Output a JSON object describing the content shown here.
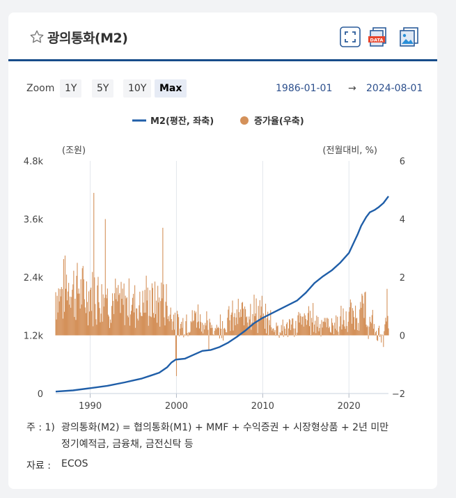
{
  "header": {
    "title": "광의통화(M2)",
    "icons": [
      "star-icon",
      "fullscreen-icon",
      "data-download-icon",
      "image-download-icon"
    ],
    "data_badge": "DATA"
  },
  "zoom": {
    "label": "Zoom",
    "buttons": [
      "1Y",
      "5Y",
      "10Y",
      "Max"
    ],
    "active": "Max",
    "range_from": "1986-01-01",
    "range_arrow": "→",
    "range_to": "2024-08-01"
  },
  "chart_data": {
    "type": "bar+line",
    "legend": {
      "position": "top-center",
      "series": [
        "M2(평잔, 좌축)",
        "증가율(우축)"
      ]
    },
    "left_axis": {
      "unit_label": "(조원)",
      "ticks": [
        "0",
        "1.2k",
        "2.4k",
        "3.6k",
        "4.8k"
      ],
      "range": [
        0,
        4800
      ]
    },
    "right_axis": {
      "unit_label": "(전월대비, %)",
      "ticks": [
        "−2",
        "0",
        "2",
        "4",
        "6"
      ],
      "range": [
        -2,
        6
      ]
    },
    "x_axis": {
      "ticks": [
        "1990",
        "2000",
        "2010",
        "2020"
      ],
      "range": [
        "1986-01",
        "2024-08"
      ]
    },
    "colors": {
      "line": "#1f5ea8",
      "bar": "#d4915a"
    },
    "series": [
      {
        "name": "M2(평잔, 좌축)",
        "axis": "left",
        "unit": "조원",
        "points": [
          [
            "1986-01",
            40
          ],
          [
            "1988-01",
            65
          ],
          [
            "1990-01",
            110
          ],
          [
            "1992-01",
            160
          ],
          [
            "1994-01",
            230
          ],
          [
            "1995-01",
            270
          ],
          [
            "1996-01",
            310
          ],
          [
            "1997-01",
            370
          ],
          [
            "1998-01",
            430
          ],
          [
            "1998-12",
            540
          ],
          [
            "1999-06",
            640
          ],
          [
            "1999-12",
            700
          ],
          [
            "2001-01",
            720
          ],
          [
            "2002-01",
            800
          ],
          [
            "2003-01",
            880
          ],
          [
            "2004-01",
            900
          ],
          [
            "2005-01",
            960
          ],
          [
            "2006-01",
            1050
          ],
          [
            "2007-01",
            1170
          ],
          [
            "2008-01",
            1300
          ],
          [
            "2009-01",
            1450
          ],
          [
            "2010-01",
            1560
          ],
          [
            "2011-01",
            1650
          ],
          [
            "2012-01",
            1740
          ],
          [
            "2013-01",
            1830
          ],
          [
            "2014-01",
            1920
          ],
          [
            "2015-01",
            2080
          ],
          [
            "2016-01",
            2280
          ],
          [
            "2017-01",
            2420
          ],
          [
            "2018-01",
            2540
          ],
          [
            "2019-01",
            2700
          ],
          [
            "2020-01",
            2900
          ],
          [
            "2021-01",
            3280
          ],
          [
            "2021-06",
            3460
          ],
          [
            "2022-01",
            3640
          ],
          [
            "2022-06",
            3740
          ],
          [
            "2023-01",
            3790
          ],
          [
            "2023-06",
            3840
          ],
          [
            "2024-01",
            3930
          ],
          [
            "2024-08",
            4070
          ]
        ]
      },
      {
        "name": "증가율(우축)",
        "axis": "right",
        "unit": "%",
        "monthly_estimate": [
          [
            1986,
            1.6
          ],
          [
            1987,
            1.9
          ],
          [
            1988,
            1.7
          ],
          [
            1989,
            1.5
          ],
          [
            1990,
            1.6
          ],
          [
            1991,
            1.5
          ],
          [
            1992,
            1.3
          ],
          [
            1993,
            1.2
          ],
          [
            1994,
            1.3
          ],
          [
            1995,
            1.2
          ],
          [
            1996,
            1.3
          ],
          [
            1997,
            1.2
          ],
          [
            1998,
            1.3
          ],
          [
            1999,
            0.9
          ],
          [
            2000,
            0.5
          ],
          [
            2001,
            0.6
          ],
          [
            2002,
            0.8
          ],
          [
            2003,
            0.5
          ],
          [
            2004,
            0.4
          ],
          [
            2005,
            0.5
          ],
          [
            2006,
            0.7
          ],
          [
            2007,
            0.8
          ],
          [
            2008,
            1.1
          ],
          [
            2009,
            0.9
          ],
          [
            2010,
            0.6
          ],
          [
            2011,
            0.4
          ],
          [
            2012,
            0.4
          ],
          [
            2013,
            0.4
          ],
          [
            2014,
            0.6
          ],
          [
            2015,
            0.7
          ],
          [
            2016,
            0.6
          ],
          [
            2017,
            0.5
          ],
          [
            2018,
            0.5
          ],
          [
            2019,
            0.6
          ],
          [
            2020,
            0.8
          ],
          [
            2021,
            1.0
          ],
          [
            2022,
            0.5
          ],
          [
            2023,
            0.2
          ],
          [
            2024,
            0.5
          ]
        ],
        "extremes": [
          [
            "1990-06",
            4.9
          ],
          [
            "1991-10",
            4.0
          ],
          [
            "1998-06",
            3.7
          ],
          [
            "1999-12",
            -0.8
          ],
          [
            "2000-01",
            -1.4
          ],
          [
            "2003-10",
            -0.5
          ],
          [
            "2024-01",
            -0.4
          ],
          [
            "2024-06",
            1.6
          ]
        ]
      }
    ]
  },
  "footnote": {
    "note_label": "주 : 1)",
    "note_line1": "광의통화(M2) = 협의통화(M1) + MMF + 수익증권 + 시장형상품 + 2년 미만",
    "note_line2": "정기예적금, 금융채, 금전신탁 등",
    "source_label": "자료 :",
    "source_value": "ECOS"
  }
}
